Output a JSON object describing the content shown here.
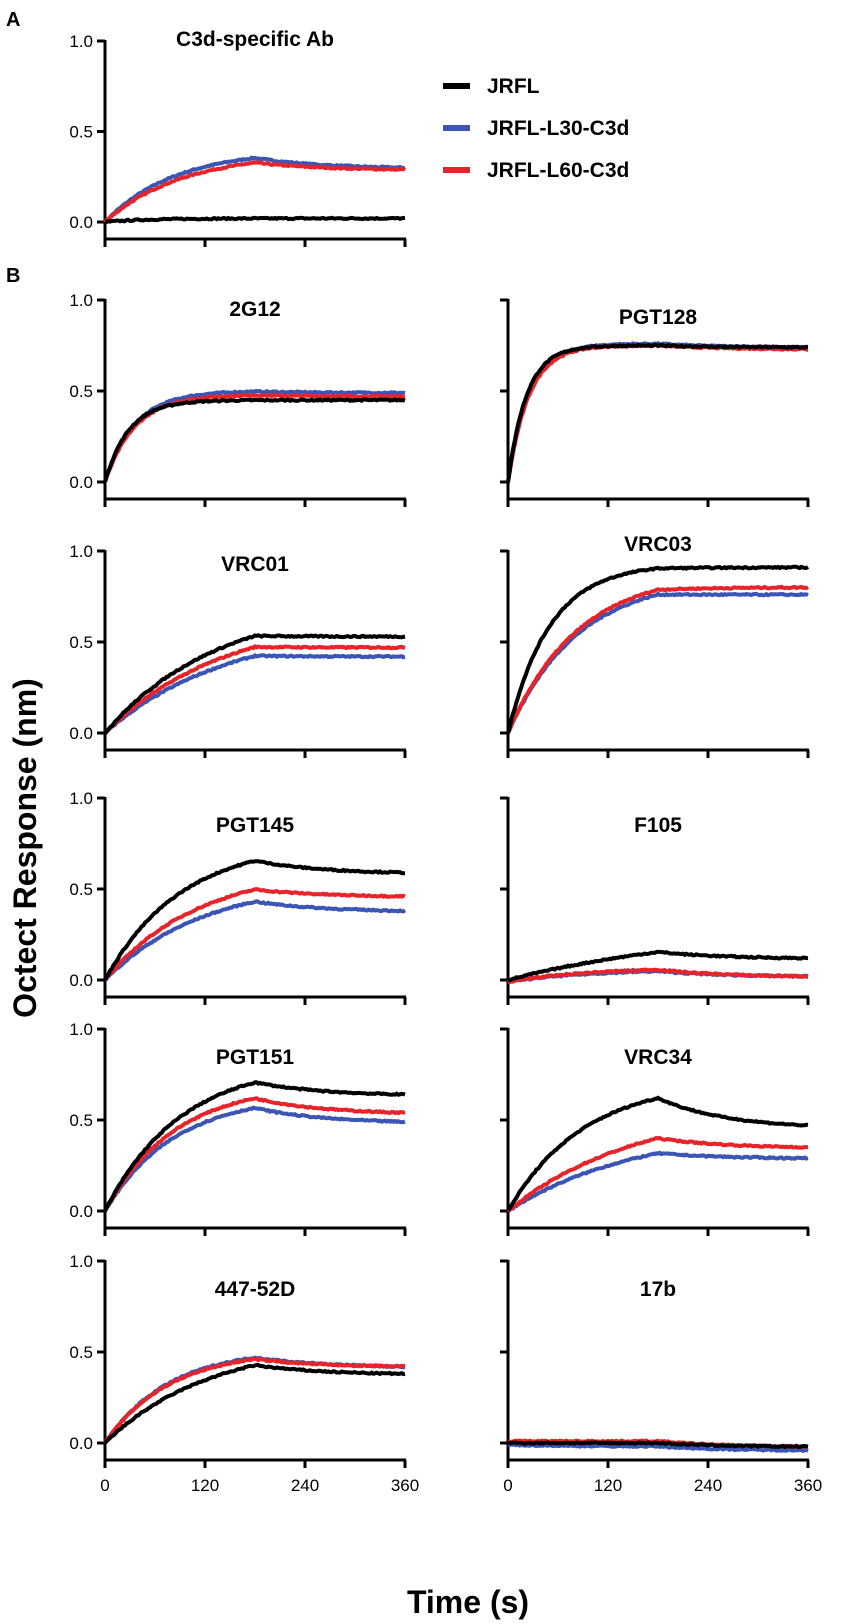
{
  "figure": {
    "panel_a_label": "A",
    "panel_b_label": "B",
    "ylabel": "Octect Response (nm)",
    "xlabel": "Time (s)"
  },
  "legend": [
    {
      "name": "JRFL",
      "color": "#000000"
    },
    {
      "name": "JRFL-L30-C3d",
      "color": "#3a55b4"
    },
    {
      "name": "JRFL-L60-C3d",
      "color": "#e8242b"
    }
  ],
  "chart_data": [
    {
      "type": "line",
      "panel": "A",
      "title": "C3d-specific Ab",
      "xlim": [
        0,
        360
      ],
      "ylim": [
        0,
        1.0
      ],
      "xticks": [
        0,
        120,
        240,
        360
      ],
      "show_xtick_labels": false,
      "yticks": [
        "0.0",
        "0.5",
        "1.0"
      ],
      "series": [
        {
          "name": "JRFL",
          "curve": {
            "plateau": 0.02,
            "k": 0.02,
            "t0": 0,
            "end": 0.02
          }
        },
        {
          "name": "JRFL-L30-C3d",
          "curve": {
            "plateau": 0.4,
            "k": 0.012,
            "t0": 0,
            "end": 0.3
          }
        },
        {
          "name": "JRFL-L60-C3d",
          "curve": {
            "plateau": 0.38,
            "k": 0.011,
            "t0": 0,
            "end": 0.29
          }
        }
      ]
    },
    {
      "type": "line",
      "panel": "B",
      "title": "2G12",
      "xlim": [
        0,
        360
      ],
      "ylim": [
        0,
        1.0
      ],
      "xticks": [
        0,
        120,
        240,
        360
      ],
      "show_xtick_labels": false,
      "yticks": [
        "0.0",
        "0.5",
        "1.0"
      ],
      "series": [
        {
          "name": "JRFL",
          "curve": {
            "plateau": 0.45,
            "k": 0.035,
            "t0": 0,
            "end": 0.45
          }
        },
        {
          "name": "JRFL-L30-C3d",
          "curve": {
            "plateau": 0.5,
            "k": 0.028,
            "t0": 0,
            "end": 0.49
          }
        },
        {
          "name": "JRFL-L60-C3d",
          "curve": {
            "plateau": 0.48,
            "k": 0.028,
            "t0": 0,
            "end": 0.47
          }
        }
      ]
    },
    {
      "type": "line",
      "panel": "B",
      "title": "PGT128",
      "xlim": [
        0,
        360
      ],
      "ylim": [
        0,
        1.0
      ],
      "xticks": [
        0,
        120,
        240,
        360
      ],
      "show_xtick_labels": false,
      "yticks": [
        "",
        "",
        ""
      ],
      "series": [
        {
          "name": "JRFL",
          "curve": {
            "plateau": 0.75,
            "k": 0.045,
            "t0": 0,
            "end": 0.74
          }
        },
        {
          "name": "JRFL-L30-C3d",
          "curve": {
            "plateau": 0.76,
            "k": 0.04,
            "t0": 0,
            "end": 0.74
          }
        },
        {
          "name": "JRFL-L60-C3d",
          "curve": {
            "plateau": 0.75,
            "k": 0.04,
            "t0": 0,
            "end": 0.73
          }
        }
      ]
    },
    {
      "type": "line",
      "panel": "B",
      "title": "VRC01",
      "xlim": [
        0,
        360
      ],
      "ylim": [
        0,
        1.0
      ],
      "xticks": [
        0,
        120,
        240,
        360
      ],
      "show_xtick_labels": false,
      "yticks": [
        "0.0",
        "0.5",
        "1.0"
      ],
      "series": [
        {
          "name": "JRFL",
          "curve": {
            "plateau": 0.72,
            "k": 0.0075,
            "t0": 0,
            "end": 0.53
          }
        },
        {
          "name": "JRFL-L30-C3d",
          "curve": {
            "plateau": 0.6,
            "k": 0.0068,
            "t0": 0,
            "end": 0.42
          }
        },
        {
          "name": "JRFL-L60-C3d",
          "curve": {
            "plateau": 0.66,
            "k": 0.007,
            "t0": 0,
            "end": 0.47
          }
        }
      ]
    },
    {
      "type": "line",
      "panel": "B",
      "title": "VRC03",
      "xlim": [
        0,
        360
      ],
      "ylim": [
        0,
        1.0
      ],
      "xticks": [
        0,
        120,
        240,
        360
      ],
      "show_xtick_labels": false,
      "yticks": [
        "",
        "",
        ""
      ],
      "series": [
        {
          "name": "JRFL",
          "curve": {
            "plateau": 0.93,
            "k": 0.02,
            "t0": 0,
            "end": 0.91
          }
        },
        {
          "name": "JRFL-L30-C3d",
          "curve": {
            "plateau": 0.86,
            "k": 0.012,
            "t0": 0,
            "end": 0.76
          }
        },
        {
          "name": "JRFL-L60-C3d",
          "curve": {
            "plateau": 0.89,
            "k": 0.012,
            "t0": 0,
            "end": 0.8
          }
        }
      ]
    },
    {
      "type": "line",
      "panel": "B",
      "title": "PGT145",
      "xlim": [
        0,
        360
      ],
      "ylim": [
        0,
        1.0
      ],
      "xticks": [
        0,
        120,
        240,
        360
      ],
      "show_xtick_labels": false,
      "yticks": [
        "0.0",
        "0.5",
        "1.0"
      ],
      "series": [
        {
          "name": "JRFL",
          "curve": {
            "plateau": 0.76,
            "k": 0.011,
            "t0": 0,
            "end": 0.59
          }
        },
        {
          "name": "JRFL-L30-C3d",
          "curve": {
            "plateau": 0.55,
            "k": 0.0085,
            "t0": 0,
            "end": 0.38
          }
        },
        {
          "name": "JRFL-L60-C3d",
          "curve": {
            "plateau": 0.62,
            "k": 0.009,
            "t0": 0,
            "end": 0.46
          }
        }
      ]
    },
    {
      "type": "line",
      "panel": "B",
      "title": "F105",
      "xlim": [
        0,
        360
      ],
      "ylim": [
        0,
        1.0
      ],
      "xticks": [
        0,
        120,
        240,
        360
      ],
      "show_xtick_labels": false,
      "yticks": [
        "",
        "",
        ""
      ],
      "series": [
        {
          "name": "JRFL",
          "curve": {
            "plateau": 0.3,
            "k": 0.004,
            "t0": 0,
            "end": 0.12
          }
        },
        {
          "name": "JRFL-L30-C3d",
          "curve": {
            "plateau": 0.06,
            "k": 0.01,
            "t0": -0.01,
            "end": 0.02
          }
        },
        {
          "name": "JRFL-L60-C3d",
          "curve": {
            "plateau": 0.07,
            "k": 0.01,
            "t0": -0.01,
            "end": 0.02
          }
        }
      ]
    },
    {
      "type": "line",
      "panel": "B",
      "title": "PGT151",
      "xlim": [
        0,
        360
      ],
      "ylim": [
        0,
        1.0
      ],
      "xticks": [
        0,
        120,
        240,
        360
      ],
      "show_xtick_labels": false,
      "yticks": [
        "0.0",
        "0.5",
        "1.0"
      ],
      "series": [
        {
          "name": "JRFL",
          "curve": {
            "plateau": 0.82,
            "k": 0.011,
            "t0": 0,
            "end": 0.64
          }
        },
        {
          "name": "JRFL-L30-C3d",
          "curve": {
            "plateau": 0.64,
            "k": 0.012,
            "t0": 0,
            "end": 0.49
          }
        },
        {
          "name": "JRFL-L60-C3d",
          "curve": {
            "plateau": 0.7,
            "k": 0.012,
            "t0": 0,
            "end": 0.54
          }
        }
      ]
    },
    {
      "type": "line",
      "panel": "B",
      "title": "VRC34",
      "xlim": [
        0,
        360
      ],
      "ylim": [
        0,
        1.0
      ],
      "xticks": [
        0,
        120,
        240,
        360
      ],
      "show_xtick_labels": false,
      "yticks": [
        "",
        "",
        ""
      ],
      "series": [
        {
          "name": "JRFL",
          "curve": {
            "plateau": 0.72,
            "k": 0.011,
            "t0": 0,
            "end": 0.47
          }
        },
        {
          "name": "JRFL-L30-C3d",
          "curve": {
            "plateau": 0.46,
            "k": 0.0065,
            "t0": 0,
            "end": 0.29
          }
        },
        {
          "name": "JRFL-L60-C3d",
          "curve": {
            "plateau": 0.58,
            "k": 0.0065,
            "t0": 0,
            "end": 0.35
          }
        }
      ]
    },
    {
      "type": "line",
      "panel": "B",
      "title": "447-52D",
      "xlim": [
        0,
        360
      ],
      "ylim": [
        0,
        1.0
      ],
      "xticks": [
        0,
        120,
        240,
        360
      ],
      "show_xtick_labels": true,
      "yticks": [
        "0.0",
        "0.5",
        "1.0"
      ],
      "series": [
        {
          "name": "JRFL",
          "curve": {
            "plateau": 0.56,
            "k": 0.008,
            "t0": 0,
            "end": 0.38
          }
        },
        {
          "name": "JRFL-L30-C3d",
          "curve": {
            "plateau": 0.52,
            "k": 0.013,
            "t0": 0,
            "end": 0.42
          }
        },
        {
          "name": "JRFL-L60-C3d",
          "curve": {
            "plateau": 0.51,
            "k": 0.013,
            "t0": 0,
            "end": 0.42
          }
        }
      ]
    },
    {
      "type": "line",
      "panel": "B",
      "title": "17b",
      "xlim": [
        0,
        360
      ],
      "ylim": [
        0,
        1.0
      ],
      "xticks": [
        0,
        120,
        240,
        360
      ],
      "show_xtick_labels": true,
      "yticks": [
        "",
        "",
        ""
      ],
      "series": [
        {
          "name": "JRFL",
          "curve": {
            "plateau": 0.0,
            "k": 0.01,
            "t0": 0.0,
            "end": -0.02
          }
        },
        {
          "name": "JRFL-L30-C3d",
          "curve": {
            "plateau": -0.02,
            "k": 0.01,
            "t0": -0.01,
            "end": -0.04
          }
        },
        {
          "name": "JRFL-L60-C3d",
          "curve": {
            "plateau": 0.01,
            "k": 0.01,
            "t0": 0.01,
            "end": -0.02
          }
        }
      ]
    }
  ]
}
